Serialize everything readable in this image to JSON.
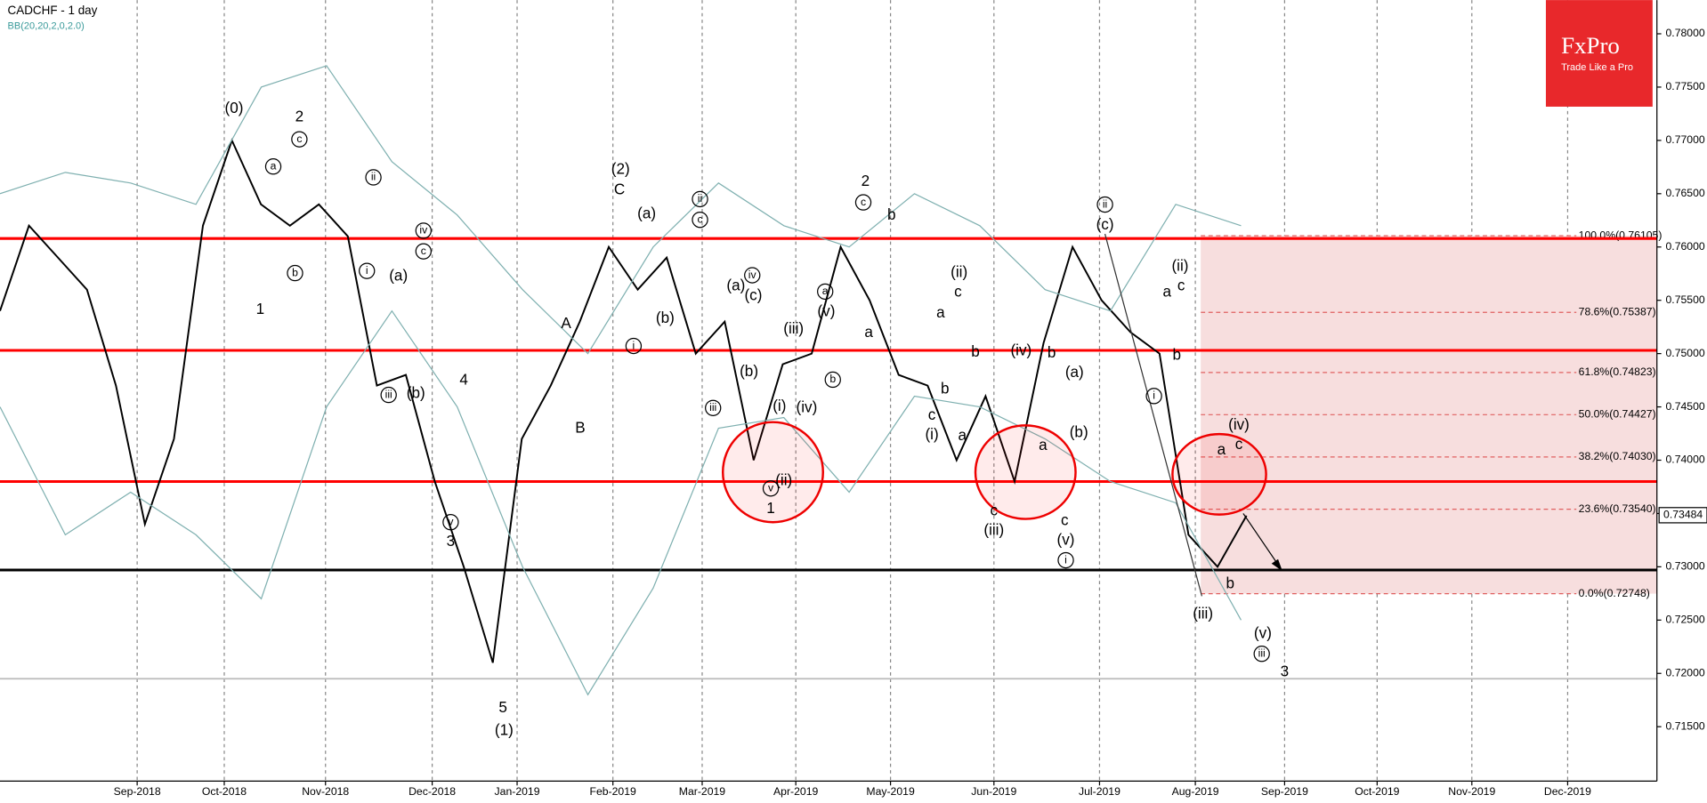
{
  "chart_data": {
    "type": "line",
    "title": "CADCHF - 1 day",
    "indicator": "BB(20,20,2,0,2.0)",
    "logo": {
      "brand": "FxPro",
      "tagline": "Trade Like a Pro",
      "color": "#e8282b"
    },
    "ylim": [
      0.7125,
      0.7825
    ],
    "yticks": [
      {
        "value": 0.715,
        "label": "0.71500"
      },
      {
        "value": 0.72,
        "label": "0.72000"
      },
      {
        "value": 0.725,
        "label": "0.72500"
      },
      {
        "value": 0.73,
        "label": "0.73000"
      },
      {
        "value": 0.735,
        "label": "0.73500"
      },
      {
        "value": 0.74,
        "label": "0.74000"
      },
      {
        "value": 0.745,
        "label": "0.74500"
      },
      {
        "value": 0.75,
        "label": "0.75000"
      },
      {
        "value": 0.755,
        "label": "0.75500"
      },
      {
        "value": 0.76,
        "label": "0.76000"
      },
      {
        "value": 0.765,
        "label": "0.76500"
      },
      {
        "value": 0.77,
        "label": "0.77000"
      },
      {
        "value": 0.775,
        "label": "0.77500"
      },
      {
        "value": 0.78,
        "label": "0.78000"
      }
    ],
    "x_labels": [
      "Sep-2018",
      "Oct-2018",
      "Nov-2018",
      "Dec-2018",
      "Jan-2019",
      "Feb-2019",
      "Mar-2019",
      "Apr-2019",
      "May-2019",
      "Jun-2019",
      "Jul-2019",
      "Aug-2019",
      "Sep-2019",
      "Oct-2019",
      "Nov-2019",
      "Dec-2019"
    ],
    "grid": true,
    "series": [
      {
        "color": "#000000",
        "values": [
          0.754,
          0.762,
          0.759,
          0.756,
          0.747,
          0.734,
          0.742,
          0.762,
          0.77,
          0.764,
          0.762,
          0.764,
          0.761,
          0.747,
          0.748,
          0.738,
          0.73,
          0.721,
          0.742,
          0.747,
          0.753,
          0.76,
          0.756,
          0.759,
          0.75,
          0.753,
          0.74,
          0.749,
          0.75,
          0.76,
          0.755,
          0.748,
          0.747,
          0.74,
          0.746,
          0.738,
          0.751,
          0.76,
          0.755,
          0.752,
          0.75,
          0.733,
          0.73,
          0.7348
        ]
      },
      {
        "color": "#7fb0b0",
        "values": [
          0.765,
          0.767,
          0.766,
          0.764,
          0.775,
          0.777,
          0.768,
          0.763,
          0.756,
          0.75,
          0.76,
          0.766,
          0.762,
          0.76,
          0.765,
          0.762,
          0.756,
          0.754,
          0.764,
          0.762
        ]
      },
      {
        "color": "#7fb0b0",
        "values": [
          0.745,
          0.733,
          0.737,
          0.733,
          0.727,
          0.745,
          0.754,
          0.745,
          0.73,
          0.718,
          0.728,
          0.743,
          0.744,
          0.737,
          0.746,
          0.745,
          0.742,
          0.738,
          0.736,
          0.725
        ]
      }
    ],
    "levels": [
      {
        "value": 0.7608,
        "color": "#ff0000"
      },
      {
        "value": 0.7503,
        "color": "#ff0000"
      },
      {
        "value": 0.738,
        "color": "#ff0000"
      },
      {
        "value": 0.7297,
        "color": "#000000"
      },
      {
        "value": 0.7195,
        "color": "#bbbbbb"
      }
    ],
    "fib_levels": [
      {
        "value": 0.76105,
        "label": "100.0%(0.76105)"
      },
      {
        "value": 0.75387,
        "label": "78.6%(0.75387)"
      },
      {
        "value": 0.74823,
        "label": "61.8%(0.74823)"
      },
      {
        "value": 0.74427,
        "label": "50.0%(0.74427)"
      },
      {
        "value": 0.7403,
        "label": "38.2%(0.74030)"
      },
      {
        "value": 0.7354,
        "label": "23.6%(0.73540)"
      },
      {
        "value": 0.72748,
        "label": "0.0%(0.72748)"
      }
    ],
    "last_price": 0.73484,
    "wave_labels": [
      "(0)",
      "2",
      "c",
      "a",
      "b",
      "1",
      "ii",
      "iv",
      "c",
      "i",
      "(a)",
      "(b)",
      "iii",
      "4",
      "3",
      "v",
      "5",
      "(1)",
      "A",
      "B",
      "(2)",
      "C",
      "(a)",
      "(b)",
      "i",
      "ii",
      "c",
      "iv",
      "(a)",
      "(c)",
      "(b)",
      "iii",
      "(i)",
      "(ii)",
      "v",
      "1",
      "(iii)",
      "(iv)",
      "a",
      "(v)",
      "b",
      "2",
      "c",
      "b",
      "a",
      "(ii)",
      "c",
      "a",
      "b",
      "b",
      "c",
      "(i)",
      "a",
      "(iv)",
      "b",
      "a",
      "c",
      "(iii)",
      "(a)",
      "(b)",
      "c",
      "(v)",
      "i",
      "ii",
      "(c)",
      "(ii)",
      "c",
      "a",
      "b",
      "i",
      "(iv)",
      "a",
      "c",
      "b",
      "(iii)",
      "(v)",
      "iii",
      "3"
    ]
  }
}
